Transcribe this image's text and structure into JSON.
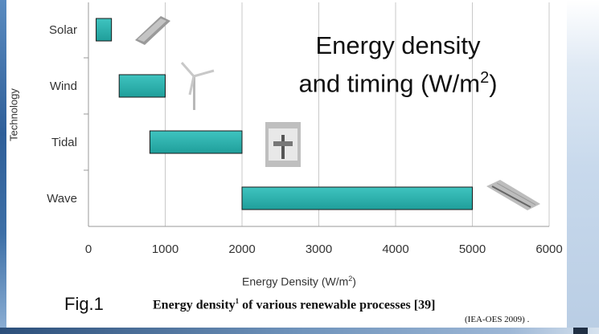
{
  "chart_data": {
    "type": "bar",
    "orientation": "horizontal-range",
    "ylabel": "Technology",
    "xlabel_prefix": "Energy Density (W/m",
    "xlabel_sup": "2",
    "xlabel_suffix": ")",
    "xlim": [
      0,
      6000
    ],
    "xticks": [
      "0",
      "1000",
      "2000",
      "3000",
      "4000",
      "5000",
      "6000"
    ],
    "categories": [
      "Solar",
      "Wind",
      "Tidal",
      "Wave"
    ],
    "ranges": [
      [
        100,
        300
      ],
      [
        400,
        1000
      ],
      [
        800,
        2000
      ],
      [
        2000,
        5000
      ]
    ],
    "grid": "vertical",
    "bar_color": "#1f9e9a"
  },
  "overlay": {
    "line1": "Energy density",
    "line2_prefix": "and timing (W/m",
    "line2_sup": "2",
    "line2_suffix": ")"
  },
  "figure": {
    "label": "Fig.1",
    "caption_prefix": "Energy density",
    "caption_sup": "1",
    "caption_suffix": " of various renewable processes [39]",
    "source": "(IEA-OES 2009) ."
  },
  "images": [
    {
      "name": "solar-panel-image",
      "category": "Solar"
    },
    {
      "name": "wind-turbine-image",
      "category": "Wind"
    },
    {
      "name": "tidal-turbine-image",
      "category": "Tidal"
    },
    {
      "name": "wave-device-image",
      "category": "Wave"
    }
  ]
}
